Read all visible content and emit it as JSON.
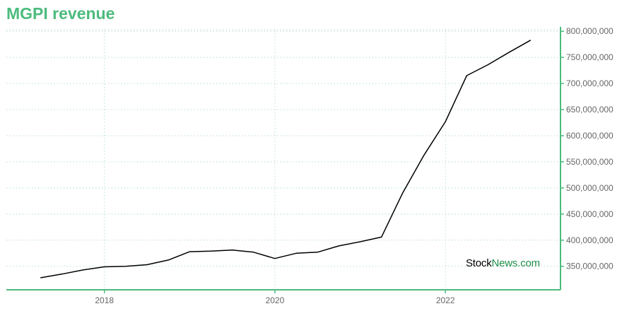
{
  "title": "MGPI revenue",
  "watermark": {
    "part1": "Stock",
    "part2": "News",
    "part3": ".com"
  },
  "colors": {
    "title": "#4cbb7d",
    "axis": "#4cbb7d",
    "grid": "#b9ddd8",
    "line": "#000000"
  },
  "chart_data": {
    "type": "line",
    "title": "MGPI revenue",
    "xlabel": "",
    "ylabel": "",
    "x_ticks": [
      "2018",
      "2020",
      "2022"
    ],
    "y_ticks": [
      "350,000,000",
      "400,000,000",
      "450,000,000",
      "500,000,000",
      "550,000,000",
      "600,000,000",
      "650,000,000",
      "700,000,000",
      "750,000,000",
      "800,000,000"
    ],
    "y_tick_values": [
      350000000,
      400000000,
      450000000,
      500000000,
      550000000,
      600000000,
      650000000,
      700000000,
      750000000,
      800000000
    ],
    "ylim": [
      305000000,
      803000000
    ],
    "xlim": [
      2016.85,
      2023.35
    ],
    "grid": true,
    "y_axis_side": "right",
    "series": [
      {
        "x": [
          2017.25,
          2017.5,
          2017.75,
          2018.0,
          2018.25,
          2018.5,
          2018.75,
          2019.0,
          2019.25,
          2019.5,
          2019.75,
          2020.0,
          2020.25,
          2020.5,
          2020.75,
          2021.0,
          2021.25,
          2021.5,
          2021.75,
          2022.0,
          2022.25,
          2022.5,
          2022.75,
          2023.0
        ],
        "values": [
          328000000,
          335000000,
          343000000,
          349000000,
          350000000,
          353000000,
          362000000,
          378000000,
          379000000,
          381000000,
          377000000,
          365000000,
          375000000,
          377000000,
          389000000,
          397000000,
          406000000,
          491000000,
          563000000,
          627000000,
          715000000,
          736000000,
          760000000,
          783000000
        ]
      }
    ]
  }
}
